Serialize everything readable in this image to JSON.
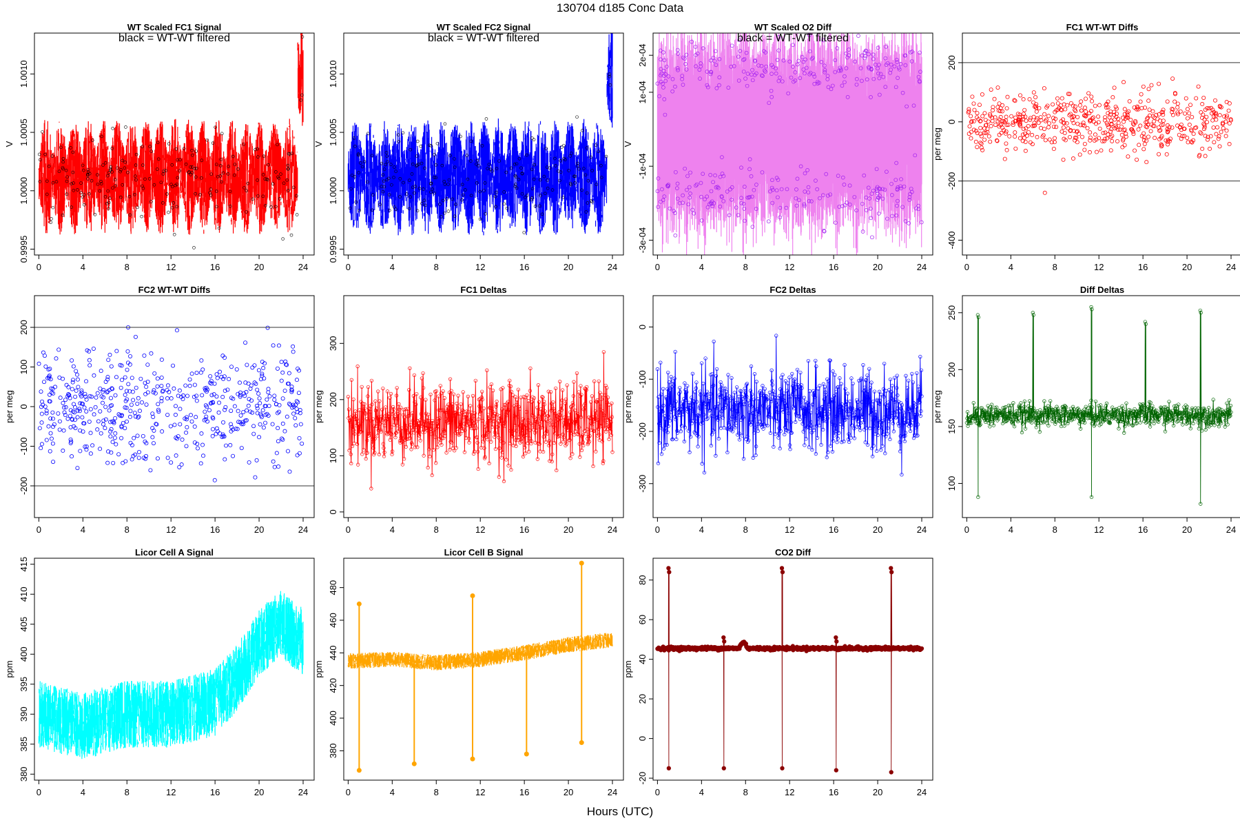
{
  "figure": {
    "title": "130704   d185   Conc Data",
    "xlabel": "Hours (UTC)"
  },
  "chart_data": [
    {
      "id": "fc1-signal",
      "type": "line",
      "title": "WT Scaled FC1 Signal",
      "annotation": "black = WT-WT filtered",
      "ylabel": "V",
      "color": "#ff0000",
      "xlim": [
        -0.4,
        25.0
      ],
      "ylim": [
        0.99945,
        1.00135
      ],
      "xticks": [
        0,
        4,
        8,
        12,
        16,
        20,
        24
      ],
      "yticks": [
        0.9995,
        1.0,
        1.0005,
        1.001
      ],
      "ytick_labels": [
        "0.9995",
        "1.0000",
        "1.0005",
        "1.0010"
      ],
      "style": "fill-band",
      "overlay": "black-points",
      "series_description": "noisy oscillating signal centered near 1.0001 with peaks every ~1.3 h; rises above 1.0012 after hour 23.5",
      "y_center": 1.00012,
      "y_spread": 0.00045
    },
    {
      "id": "fc2-signal",
      "type": "line",
      "title": "WT Scaled FC2 Signal",
      "annotation": "black = WT-WT filtered",
      "ylabel": "V",
      "color": "#0000ff",
      "xlim": [
        -0.4,
        25.0
      ],
      "ylim": [
        0.99945,
        1.00135
      ],
      "xticks": [
        0,
        4,
        8,
        12,
        16,
        20,
        24
      ],
      "yticks": [
        0.9995,
        1.0,
        1.0005,
        1.001
      ],
      "ytick_labels": [
        "0.9995",
        "1.0000",
        "1.0005",
        "1.0010"
      ],
      "style": "fill-band",
      "overlay": "black-points",
      "y_center": 1.00012,
      "y_spread": 0.00045
    },
    {
      "id": "o2-diff",
      "type": "scatter",
      "title": "WT Scaled O2 Diff",
      "annotation": "black = WT-WT filtered",
      "ylabel": "V",
      "color": "#ee82ee",
      "point_color": "#a020f0",
      "xlim": [
        -0.4,
        25.0
      ],
      "ylim": [
        -0.00034,
        0.00026
      ],
      "xticks": [
        0,
        4,
        8,
        12,
        16,
        20,
        24
      ],
      "yticks": [
        -0.0003,
        -0.0001,
        0.0001,
        0.0002
      ],
      "ytick_labels": [
        "-3e-04",
        "-1e-04",
        "1e-04",
        "2e-04"
      ],
      "style": "two-band",
      "upper_center": 0.00016,
      "lower_center": -0.00018
    },
    {
      "id": "fc1-wtwt",
      "type": "scatter",
      "title": "FC1 WT-WT Diffs",
      "ylabel": "per meg",
      "color": "#ff0000",
      "xlim": [
        -0.4,
        25.0
      ],
      "ylim": [
        -450,
        300
      ],
      "xticks": [
        0,
        4,
        8,
        12,
        16,
        20,
        24
      ],
      "yticks": [
        -400,
        -200,
        0,
        200
      ],
      "hlines": [
        200,
        -200
      ],
      "y_center": 0,
      "y_sd": 50
    },
    {
      "id": "fc2-wtwt",
      "type": "scatter",
      "title": "FC2 WT-WT Diffs",
      "ylabel": "per meg",
      "color": "#0000ff",
      "xlim": [
        -0.4,
        25.0
      ],
      "ylim": [
        -280,
        280
      ],
      "xticks": [
        0,
        4,
        8,
        12,
        16,
        20,
        24
      ],
      "yticks": [
        -200,
        -100,
        0,
        100,
        200
      ],
      "hlines": [
        200,
        -200
      ],
      "y_center": 0,
      "y_sd": 70
    },
    {
      "id": "fc1-deltas",
      "type": "line",
      "title": "FC1 Deltas",
      "ylabel": "per meg",
      "color": "#ff0000",
      "xlim": [
        -0.4,
        25.0
      ],
      "ylim": [
        -10,
        385
      ],
      "xticks": [
        0,
        4,
        8,
        12,
        16,
        20,
        24
      ],
      "yticks": [
        0,
        100,
        200,
        300
      ],
      "style": "line-points",
      "y_center": 160,
      "y_sd": 35
    },
    {
      "id": "fc2-deltas",
      "type": "line",
      "title": "FC2 Deltas",
      "ylabel": "per meg",
      "color": "#0000ff",
      "xlim": [
        -0.4,
        25.0
      ],
      "ylim": [
        -365,
        60
      ],
      "xticks": [
        0,
        4,
        8,
        12,
        16,
        20,
        24
      ],
      "yticks": [
        -300,
        -200,
        -100,
        0
      ],
      "style": "line-points",
      "y_center": -160,
      "y_sd": 40
    },
    {
      "id": "diff-deltas",
      "type": "line",
      "title": "Diff Deltas",
      "ylabel": "per meg",
      "color": "#006400",
      "xlim": [
        -0.4,
        25.0
      ],
      "ylim": [
        70,
        265
      ],
      "xticks": [
        0,
        4,
        8,
        12,
        16,
        20,
        24
      ],
      "yticks": [
        100,
        150,
        200,
        250
      ],
      "style": "line-points",
      "y_center": 160,
      "y_sd": 5,
      "spikes": [
        {
          "x": 1.0,
          "high": 248,
          "low": 88
        },
        {
          "x": 6.0,
          "high": 250
        },
        {
          "x": 11.3,
          "high": 255,
          "low": 88
        },
        {
          "x": 16.2,
          "high": 242
        },
        {
          "x": 21.2,
          "high": 252,
          "low": 82
        }
      ]
    },
    {
      "id": "licor-a",
      "type": "line",
      "title": "Licor Cell A Signal",
      "ylabel": "ppm",
      "color": "#00ffff",
      "xlim": [
        -0.4,
        25.0
      ],
      "ylim": [
        379,
        416
      ],
      "xticks": [
        0,
        4,
        8,
        12,
        16,
        20,
        24
      ],
      "yticks": [
        380,
        385,
        390,
        395,
        400,
        405,
        410,
        415
      ],
      "style": "fill-band",
      "trend": [
        [
          0,
          390
        ],
        [
          4,
          388
        ],
        [
          8,
          390
        ],
        [
          12,
          390
        ],
        [
          16,
          392
        ],
        [
          18,
          396
        ],
        [
          20,
          402
        ],
        [
          22,
          405
        ],
        [
          24,
          402
        ]
      ],
      "y_spread": 7
    },
    {
      "id": "licor-b",
      "type": "line",
      "title": "Licor Cell B Signal",
      "ylabel": "ppm",
      "color": "#ffa500",
      "xlim": [
        -0.4,
        25.0
      ],
      "ylim": [
        362,
        498
      ],
      "xticks": [
        0,
        4,
        8,
        12,
        16,
        20,
        24
      ],
      "yticks": [
        380,
        400,
        420,
        440,
        460,
        480
      ],
      "style": "fill-band",
      "trend": [
        [
          0,
          435
        ],
        [
          4,
          436
        ],
        [
          8,
          434
        ],
        [
          12,
          436
        ],
        [
          16,
          440
        ],
        [
          20,
          445
        ],
        [
          24,
          448
        ]
      ],
      "y_spread": 6,
      "spikes": [
        {
          "x": 1.0,
          "high": 470,
          "low": 368
        },
        {
          "x": 6.0,
          "low": 372
        },
        {
          "x": 11.3,
          "high": 475,
          "low": 375
        },
        {
          "x": 16.2,
          "low": 378
        },
        {
          "x": 21.2,
          "high": 495,
          "low": 385
        }
      ]
    },
    {
      "id": "co2-diff",
      "type": "line",
      "title": "CO2 Diff",
      "ylabel": "ppm",
      "color": "#8b0000",
      "xlim": [
        -0.4,
        25.0
      ],
      "ylim": [
        -21,
        91
      ],
      "xticks": [
        0,
        4,
        8,
        12,
        16,
        20,
        24
      ],
      "yticks": [
        -20,
        0,
        20,
        40,
        60,
        80
      ],
      "style": "line-points",
      "y_center": 45.5,
      "y_sd": 0.4,
      "bump": {
        "x": 7.8,
        "height": 3
      },
      "spikes": [
        {
          "x": 1.0,
          "high": 86,
          "low": -15
        },
        {
          "x": 6.0,
          "high": 51,
          "low": -15
        },
        {
          "x": 11.3,
          "high": 86,
          "low": -15
        },
        {
          "x": 16.2,
          "high": 51,
          "low": -16
        },
        {
          "x": 21.2,
          "high": 86,
          "low": -17
        }
      ]
    }
  ]
}
